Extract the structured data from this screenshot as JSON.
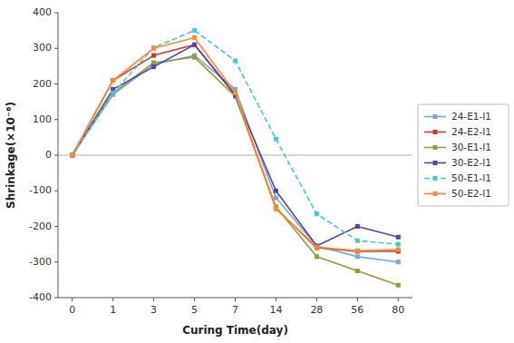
{
  "chart_data": {
    "type": "line",
    "xlabel": "Curing Time(day)",
    "ylabel": "Shrinkage(×10⁻⁶)",
    "categories": [
      "0",
      "1",
      "3",
      "5",
      "7",
      "14",
      "28",
      "56",
      "80"
    ],
    "series": [
      {
        "name": "24-E1-I1",
        "color": "#7BA7D4",
        "line_style": "solid",
        "marker": "square",
        "values": [
          0,
          170,
          255,
          280,
          185,
          -120,
          -255,
          -285,
          -300
        ]
      },
      {
        "name": "24-E2-I1",
        "color": "#CC3333",
        "line_style": "solid",
        "marker": "square",
        "values": [
          0,
          210,
          280,
          310,
          170,
          -150,
          -260,
          -270,
          -270
        ]
      },
      {
        "name": "30-E1-I1",
        "color": "#999933",
        "line_style": "solid",
        "marker": "square",
        "values": [
          0,
          175,
          260,
          275,
          165,
          -145,
          -285,
          -325,
          -365
        ]
      },
      {
        "name": "30-E2-I1",
        "color": "#5544AA",
        "line_style": "solid",
        "marker": "square",
        "values": [
          0,
          185,
          248,
          310,
          168,
          -100,
          -255,
          -200,
          -230
        ]
      },
      {
        "name": "50-E1-I1",
        "color": "#44CCCC",
        "line_style": "dashed",
        "marker": "square",
        "values": [
          0,
          175,
          302,
          350,
          265,
          45,
          -165,
          -240,
          -250
        ]
      },
      {
        "name": "50-E2-I1",
        "color": "#FF8833",
        "line_style": "solid",
        "marker": "square",
        "values": [
          0,
          210,
          300,
          330,
          175,
          -150,
          -258,
          -268,
          -265
        ]
      }
    ],
    "ylim": [
      -400,
      400
    ],
    "yticks": [
      -400,
      -300,
      -200,
      -100,
      0,
      100,
      200,
      300,
      400
    ],
    "grid": false,
    "legend": "right"
  }
}
